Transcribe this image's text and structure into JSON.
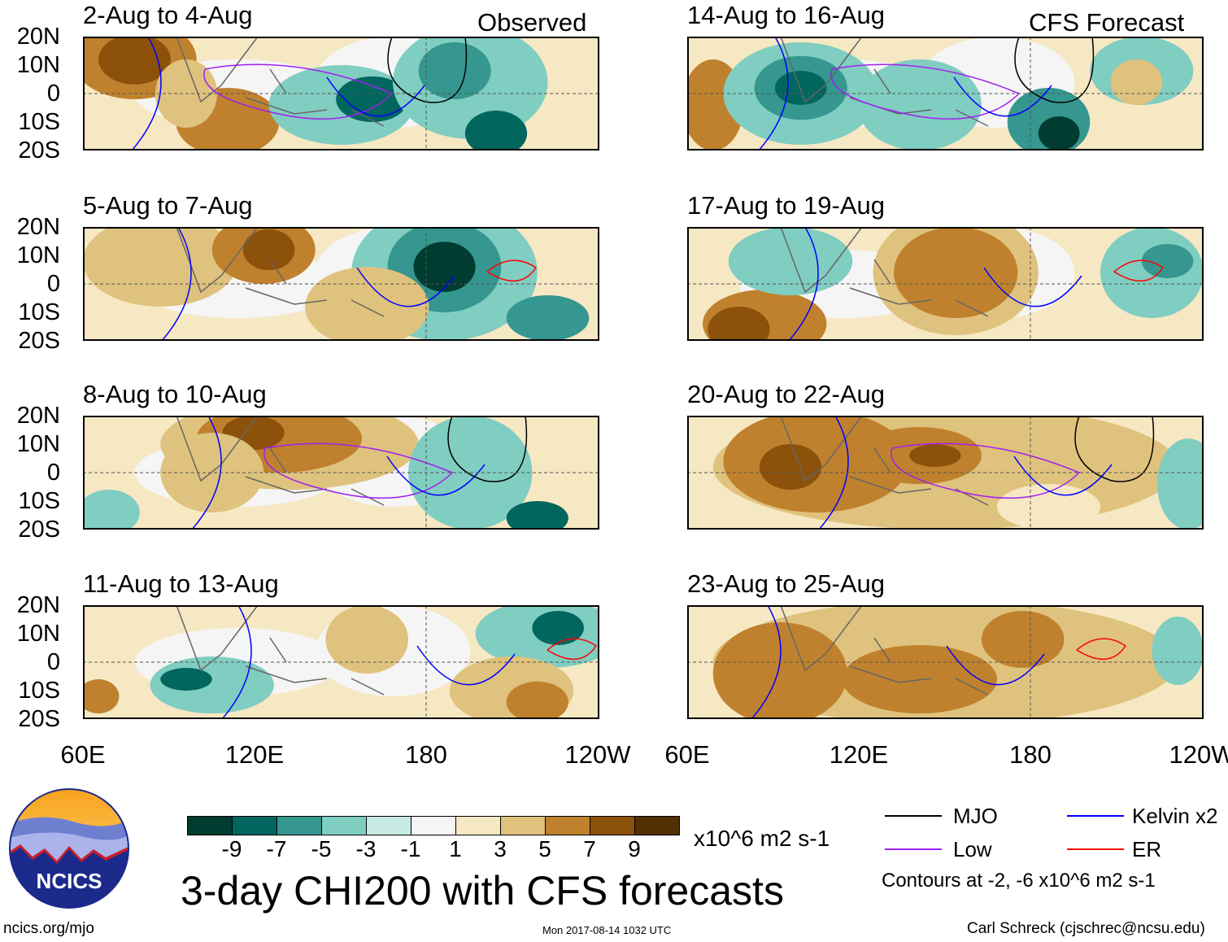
{
  "title": "3-day CHI200 with CFS forecasts",
  "left_column_label": "Observed",
  "right_column_label": "CFS Forecast",
  "latitude_labels": [
    "20N",
    "10N",
    "0",
    "10S",
    "20S"
  ],
  "longitude_labels": [
    "60E",
    "120E",
    "180",
    "120W"
  ],
  "panels": [
    {
      "label": "2-Aug to 4-Aug",
      "column": "Observed"
    },
    {
      "label": "5-Aug to 7-Aug",
      "column": "Observed"
    },
    {
      "label": "8-Aug to 10-Aug",
      "column": "Observed"
    },
    {
      "label": "11-Aug to 13-Aug",
      "column": "Observed"
    },
    {
      "label": "14-Aug to 16-Aug",
      "column": "CFS Forecast"
    },
    {
      "label": "17-Aug to 19-Aug",
      "column": "CFS Forecast"
    },
    {
      "label": "20-Aug to 22-Aug",
      "column": "CFS Forecast"
    },
    {
      "label": "23-Aug to 25-Aug",
      "column": "CFS Forecast"
    }
  ],
  "colorbar": {
    "colors": [
      "#003c30",
      "#01665e",
      "#35978f",
      "#80cdc1",
      "#c7eae5",
      "#f5f5f5",
      "#f6e8c3",
      "#dfc27d",
      "#bf812d",
      "#8c510a",
      "#543005"
    ],
    "ticks": [
      "-9",
      "-7",
      "-5",
      "-3",
      "-1",
      "1",
      "3",
      "5",
      "7",
      "9"
    ],
    "units": "x10^6 m2 s-1"
  },
  "legend": {
    "items": [
      {
        "label": "MJO",
        "color": "#000000"
      },
      {
        "label": "Kelvin x2",
        "color": "#0000ff"
      },
      {
        "label": "Low",
        "color": "#a020f0"
      },
      {
        "label": "ER",
        "color": "#ff0000"
      }
    ],
    "note": "Contours at -2, -6 x10^6 m2 s-1"
  },
  "logo_text": "NCICS",
  "footer": {
    "url": "ncics.org/mjo",
    "timestamp": "Mon 2017-08-14 1032 UTC",
    "author": "Carl Schreck (cjschrec@ncsu.edu)"
  }
}
